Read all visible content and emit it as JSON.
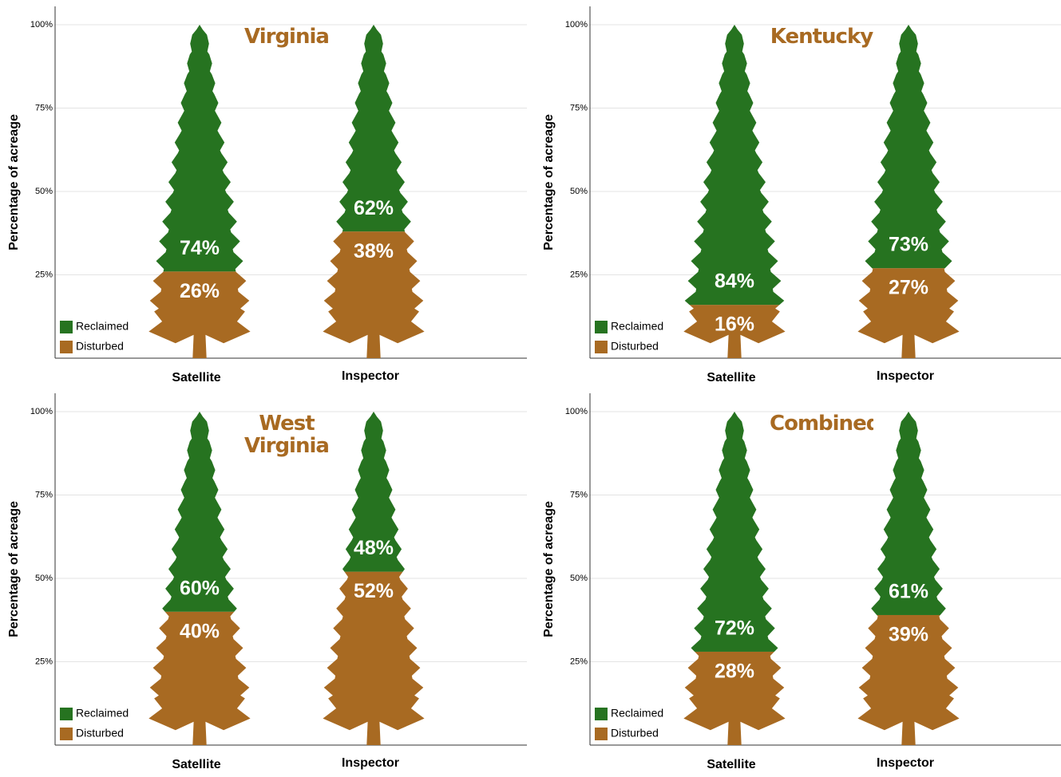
{
  "chart_data": [
    {
      "type": "pictograph",
      "title": "Virginia",
      "ylabel": "Percentage of acreage",
      "categories": [
        "Satellite",
        "Inspector"
      ],
      "series": [
        {
          "name": "Reclaimed",
          "color": "#267320",
          "values": [
            74,
            62
          ],
          "value_labels": [
            "74%",
            "62%"
          ]
        },
        {
          "name": "Disturbed",
          "color": "#a86a22",
          "values": [
            26,
            38
          ],
          "value_labels": [
            "26%",
            "38%"
          ]
        }
      ],
      "ylim": [
        0,
        100
      ],
      "yticks": [
        {
          "value": 25,
          "label": "25%"
        },
        {
          "value": 50,
          "label": "50%"
        },
        {
          "value": 75,
          "label": "75%"
        },
        {
          "value": 100,
          "label": "100%"
        }
      ],
      "grid": true,
      "legend": "lower left"
    },
    {
      "type": "pictograph",
      "title": "Kentucky",
      "ylabel": "Percentage of acreage",
      "categories": [
        "Satellite",
        "Inspector"
      ],
      "series": [
        {
          "name": "Reclaimed",
          "color": "#267320",
          "values": [
            84,
            73
          ],
          "value_labels": [
            "84%",
            "73%"
          ]
        },
        {
          "name": "Disturbed",
          "color": "#a86a22",
          "values": [
            16,
            27
          ],
          "value_labels": [
            "16%",
            "27%"
          ]
        }
      ],
      "ylim": [
        0,
        100
      ],
      "yticks": [
        {
          "value": 25,
          "label": "25%"
        },
        {
          "value": 50,
          "label": "50%"
        },
        {
          "value": 75,
          "label": "75%"
        },
        {
          "value": 100,
          "label": "100%"
        }
      ],
      "grid": true,
      "legend": "lower left"
    },
    {
      "type": "pictograph",
      "title": "West Virginia",
      "ylabel": "Percentage of acreage",
      "categories": [
        "Satellite",
        "Inspector"
      ],
      "series": [
        {
          "name": "Reclaimed",
          "color": "#267320",
          "values": [
            60,
            48
          ],
          "value_labels": [
            "60%",
            "48%"
          ]
        },
        {
          "name": "Disturbed",
          "color": "#a86a22",
          "values": [
            40,
            52
          ],
          "value_labels": [
            "40%",
            "52%"
          ]
        }
      ],
      "ylim": [
        0,
        100
      ],
      "yticks": [
        {
          "value": 25,
          "label": "25%"
        },
        {
          "value": 50,
          "label": "50%"
        },
        {
          "value": 75,
          "label": "75%"
        },
        {
          "value": 100,
          "label": "100%"
        }
      ],
      "grid": true,
      "legend": "lower left"
    },
    {
      "type": "pictograph",
      "title": "Combined",
      "ylabel": "Percentage of acreage",
      "categories": [
        "Satellite",
        "Inspector"
      ],
      "series": [
        {
          "name": "Reclaimed",
          "color": "#267320",
          "values": [
            72,
            61
          ],
          "value_labels": [
            "72%",
            "61%"
          ]
        },
        {
          "name": "Disturbed",
          "color": "#a86a22",
          "values": [
            28,
            39
          ],
          "value_labels": [
            "28%",
            "39%"
          ]
        }
      ],
      "ylim": [
        0,
        100
      ],
      "yticks": [
        {
          "value": 25,
          "label": "25%"
        },
        {
          "value": 50,
          "label": "50%"
        },
        {
          "value": 75,
          "label": "75%"
        },
        {
          "value": 100,
          "label": "100%"
        }
      ],
      "grid": true,
      "legend": "lower left"
    }
  ]
}
